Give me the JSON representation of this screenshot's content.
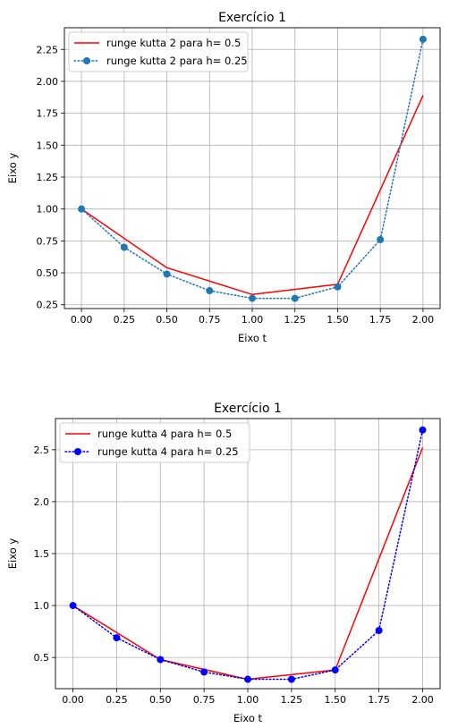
{
  "chart_data": [
    {
      "type": "line",
      "title": "Exercício 1",
      "xlabel": "Eixo t",
      "ylabel": "Eixo y",
      "xlim": [
        -0.1,
        2.1
      ],
      "ylim": [
        0.22,
        2.42
      ],
      "xticks": [
        0.0,
        0.25,
        0.5,
        0.75,
        1.0,
        1.25,
        1.5,
        1.75,
        2.0
      ],
      "xtick_labels": [
        "0.00",
        "0.25",
        "0.50",
        "0.75",
        "1.00",
        "1.25",
        "1.50",
        "1.75",
        "2.00"
      ],
      "yticks": [
        0.25,
        0.5,
        0.75,
        1.0,
        1.25,
        1.5,
        1.75,
        2.0,
        2.25
      ],
      "ytick_labels": [
        "0.25",
        "0.50",
        "0.75",
        "1.00",
        "1.25",
        "1.50",
        "1.75",
        "2.00",
        "2.25"
      ],
      "grid": true,
      "legend_position": "top-left",
      "series": [
        {
          "name": "runge kutta 2 para h= 0.5",
          "color": "#ff0000",
          "style": "solid",
          "marker": "none",
          "x": [
            0.0,
            0.5,
            1.0,
            1.5,
            2.0
          ],
          "y": [
            1.0,
            0.54,
            0.33,
            0.41,
            1.89
          ]
        },
        {
          "name": "runge kutta 2 para h= 0.25",
          "color": "#1f77b4",
          "style": "dotted",
          "marker": "circle",
          "x": [
            0.0,
            0.25,
            0.5,
            0.75,
            1.0,
            1.25,
            1.5,
            1.75,
            2.0
          ],
          "y": [
            1.0,
            0.7,
            0.49,
            0.36,
            0.3,
            0.3,
            0.39,
            0.76,
            2.33
          ]
        }
      ]
    },
    {
      "type": "line",
      "title": "Exercício 1",
      "xlabel": "Eixo t",
      "ylabel": "Eixo y",
      "xlim": [
        -0.1,
        2.1
      ],
      "ylim": [
        0.2,
        2.8
      ],
      "xticks": [
        0.0,
        0.25,
        0.5,
        0.75,
        1.0,
        1.25,
        1.5,
        1.75,
        2.0
      ],
      "xtick_labels": [
        "0.00",
        "0.25",
        "0.50",
        "0.75",
        "1.00",
        "1.25",
        "1.50",
        "1.75",
        "2.00"
      ],
      "yticks": [
        0.5,
        1.0,
        1.5,
        2.0,
        2.5
      ],
      "ytick_labels": [
        "0.5",
        "1.0",
        "1.5",
        "2.0",
        "2.5"
      ],
      "grid": true,
      "legend_position": "top-left",
      "series": [
        {
          "name": "runge kutta 4 para h= 0.5",
          "color": "#ff0000",
          "style": "solid",
          "marker": "none",
          "x": [
            0.0,
            0.5,
            1.0,
            1.5,
            2.0
          ],
          "y": [
            1.0,
            0.48,
            0.29,
            0.38,
            2.52
          ]
        },
        {
          "name": "runge kutta 4 para h= 0.25",
          "color": "#0000ff",
          "style": "dotted",
          "marker": "circle",
          "x": [
            0.0,
            0.25,
            0.5,
            0.75,
            1.0,
            1.25,
            1.5,
            1.75,
            2.0
          ],
          "y": [
            1.0,
            0.69,
            0.48,
            0.36,
            0.29,
            0.29,
            0.38,
            0.76,
            2.69
          ]
        }
      ]
    }
  ]
}
